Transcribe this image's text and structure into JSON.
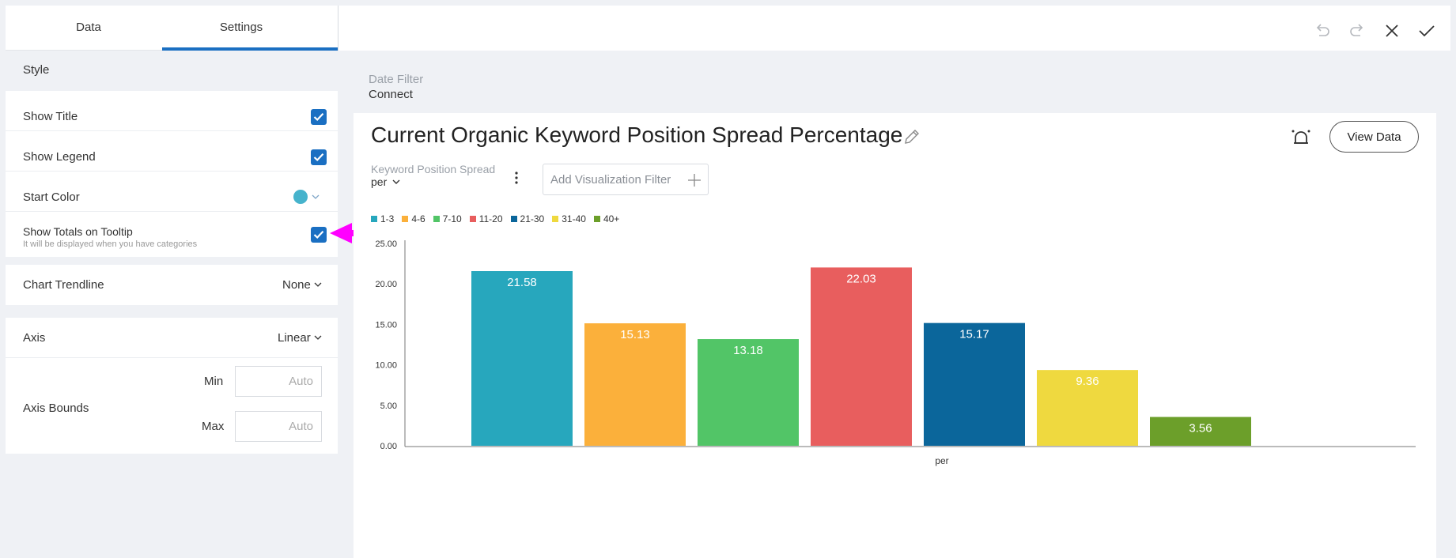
{
  "tabs": {
    "data": "Data",
    "settings": "Settings"
  },
  "style_section": {
    "title": "Style"
  },
  "settings": {
    "show_title": {
      "label": "Show Title",
      "checked": true
    },
    "show_legend": {
      "label": "Show Legend",
      "checked": true
    },
    "start_color": {
      "label": "Start Color",
      "color": "#46b3cc"
    },
    "show_totals": {
      "label": "Show Totals on Tooltip",
      "sublabel": "It will be displayed when you have categories",
      "checked": true
    },
    "chart_trendline": {
      "label": "Chart Trendline",
      "value": "None"
    },
    "axis": {
      "label": "Axis",
      "value": "Linear"
    },
    "axis_bounds": {
      "label": "Axis Bounds",
      "min_label": "Min",
      "max_label": "Max",
      "min_placeholder": "Auto",
      "max_placeholder": "Auto"
    }
  },
  "toolbar": {
    "icons": [
      "undo-icon",
      "redo-icon",
      "close-icon",
      "check-icon"
    ]
  },
  "date_filter": {
    "label": "Date Filter",
    "value": "Connect"
  },
  "widget": {
    "title": "Current Organic Keyword Position Spread Percentage",
    "view_data_label": "View Data",
    "keyword_position_label": "Keyword Position Spread",
    "keyword_position_value": "per",
    "viz_filter_placeholder": "Add Visualization Filter"
  },
  "annotation": {
    "arrow_color": "#ff00ff"
  },
  "chart_data": {
    "type": "bar",
    "categories": [
      "per"
    ],
    "xlabel": "per",
    "ylabel": "",
    "ylim": [
      0,
      25
    ],
    "yticks": [
      "0.00",
      "5.00",
      "10.00",
      "15.00",
      "20.00",
      "25.00"
    ],
    "legend_position": "top-left",
    "grid": false,
    "series": [
      {
        "name": "1-3",
        "values": [
          21.58
        ],
        "label": "21.58",
        "color": "#27a7bd"
      },
      {
        "name": "4-6",
        "values": [
          15.13
        ],
        "label": "15.13",
        "color": "#fbb03b"
      },
      {
        "name": "7-10",
        "values": [
          13.18
        ],
        "label": "13.18",
        "color": "#52c567"
      },
      {
        "name": "11-20",
        "values": [
          22.03
        ],
        "label": "22.03",
        "color": "#e85e5e"
      },
      {
        "name": "21-30",
        "values": [
          15.17
        ],
        "label": "15.17",
        "color": "#0b669b"
      },
      {
        "name": "31-40",
        "values": [
          9.36
        ],
        "label": "9.36",
        "color": "#efd93f"
      },
      {
        "name": "40+",
        "values": [
          3.56
        ],
        "label": "3.56",
        "color": "#6c9f2a"
      }
    ]
  }
}
